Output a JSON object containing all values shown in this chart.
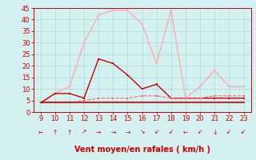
{
  "xlabel": "Vent moyen/en rafales ( km/h )",
  "x_hours": [
    9,
    10,
    11,
    12,
    13,
    14,
    15,
    16,
    17,
    18,
    19,
    20,
    21,
    22,
    23
  ],
  "line_rafales": [
    4,
    8,
    11,
    30,
    42,
    44,
    44,
    38,
    21,
    44,
    6,
    11,
    18,
    11,
    11
  ],
  "line_moyen": [
    4,
    8,
    8,
    6,
    23,
    21,
    16,
    10,
    12,
    6,
    6,
    6,
    6,
    6,
    6
  ],
  "line_moy2": [
    4,
    4,
    4,
    5,
    6,
    6,
    6,
    7,
    7,
    6,
    6,
    6,
    7,
    7,
    7
  ],
  "line_flat": [
    4,
    4,
    4,
    4,
    4,
    4,
    4,
    4,
    4,
    4,
    4,
    4,
    4,
    4,
    4
  ],
  "color_rafales": "#ffaaaa",
  "color_moyen": "#cc0000",
  "color_moy2": "#ff6666",
  "color_flat": "#cc0000",
  "bg_color": "#d4f0f0",
  "grid_color": "#aadddd",
  "axis_color": "#cc0000",
  "ylim": [
    0,
    45
  ],
  "yticks": [
    0,
    5,
    10,
    15,
    20,
    25,
    30,
    35,
    40,
    45
  ],
  "arrow_symbols": [
    "←",
    "↑",
    "↑",
    "↗",
    "→",
    "→",
    "→",
    "↘",
    "↙",
    "↙",
    "←",
    "↙",
    "↓",
    "↙",
    "↙"
  ]
}
